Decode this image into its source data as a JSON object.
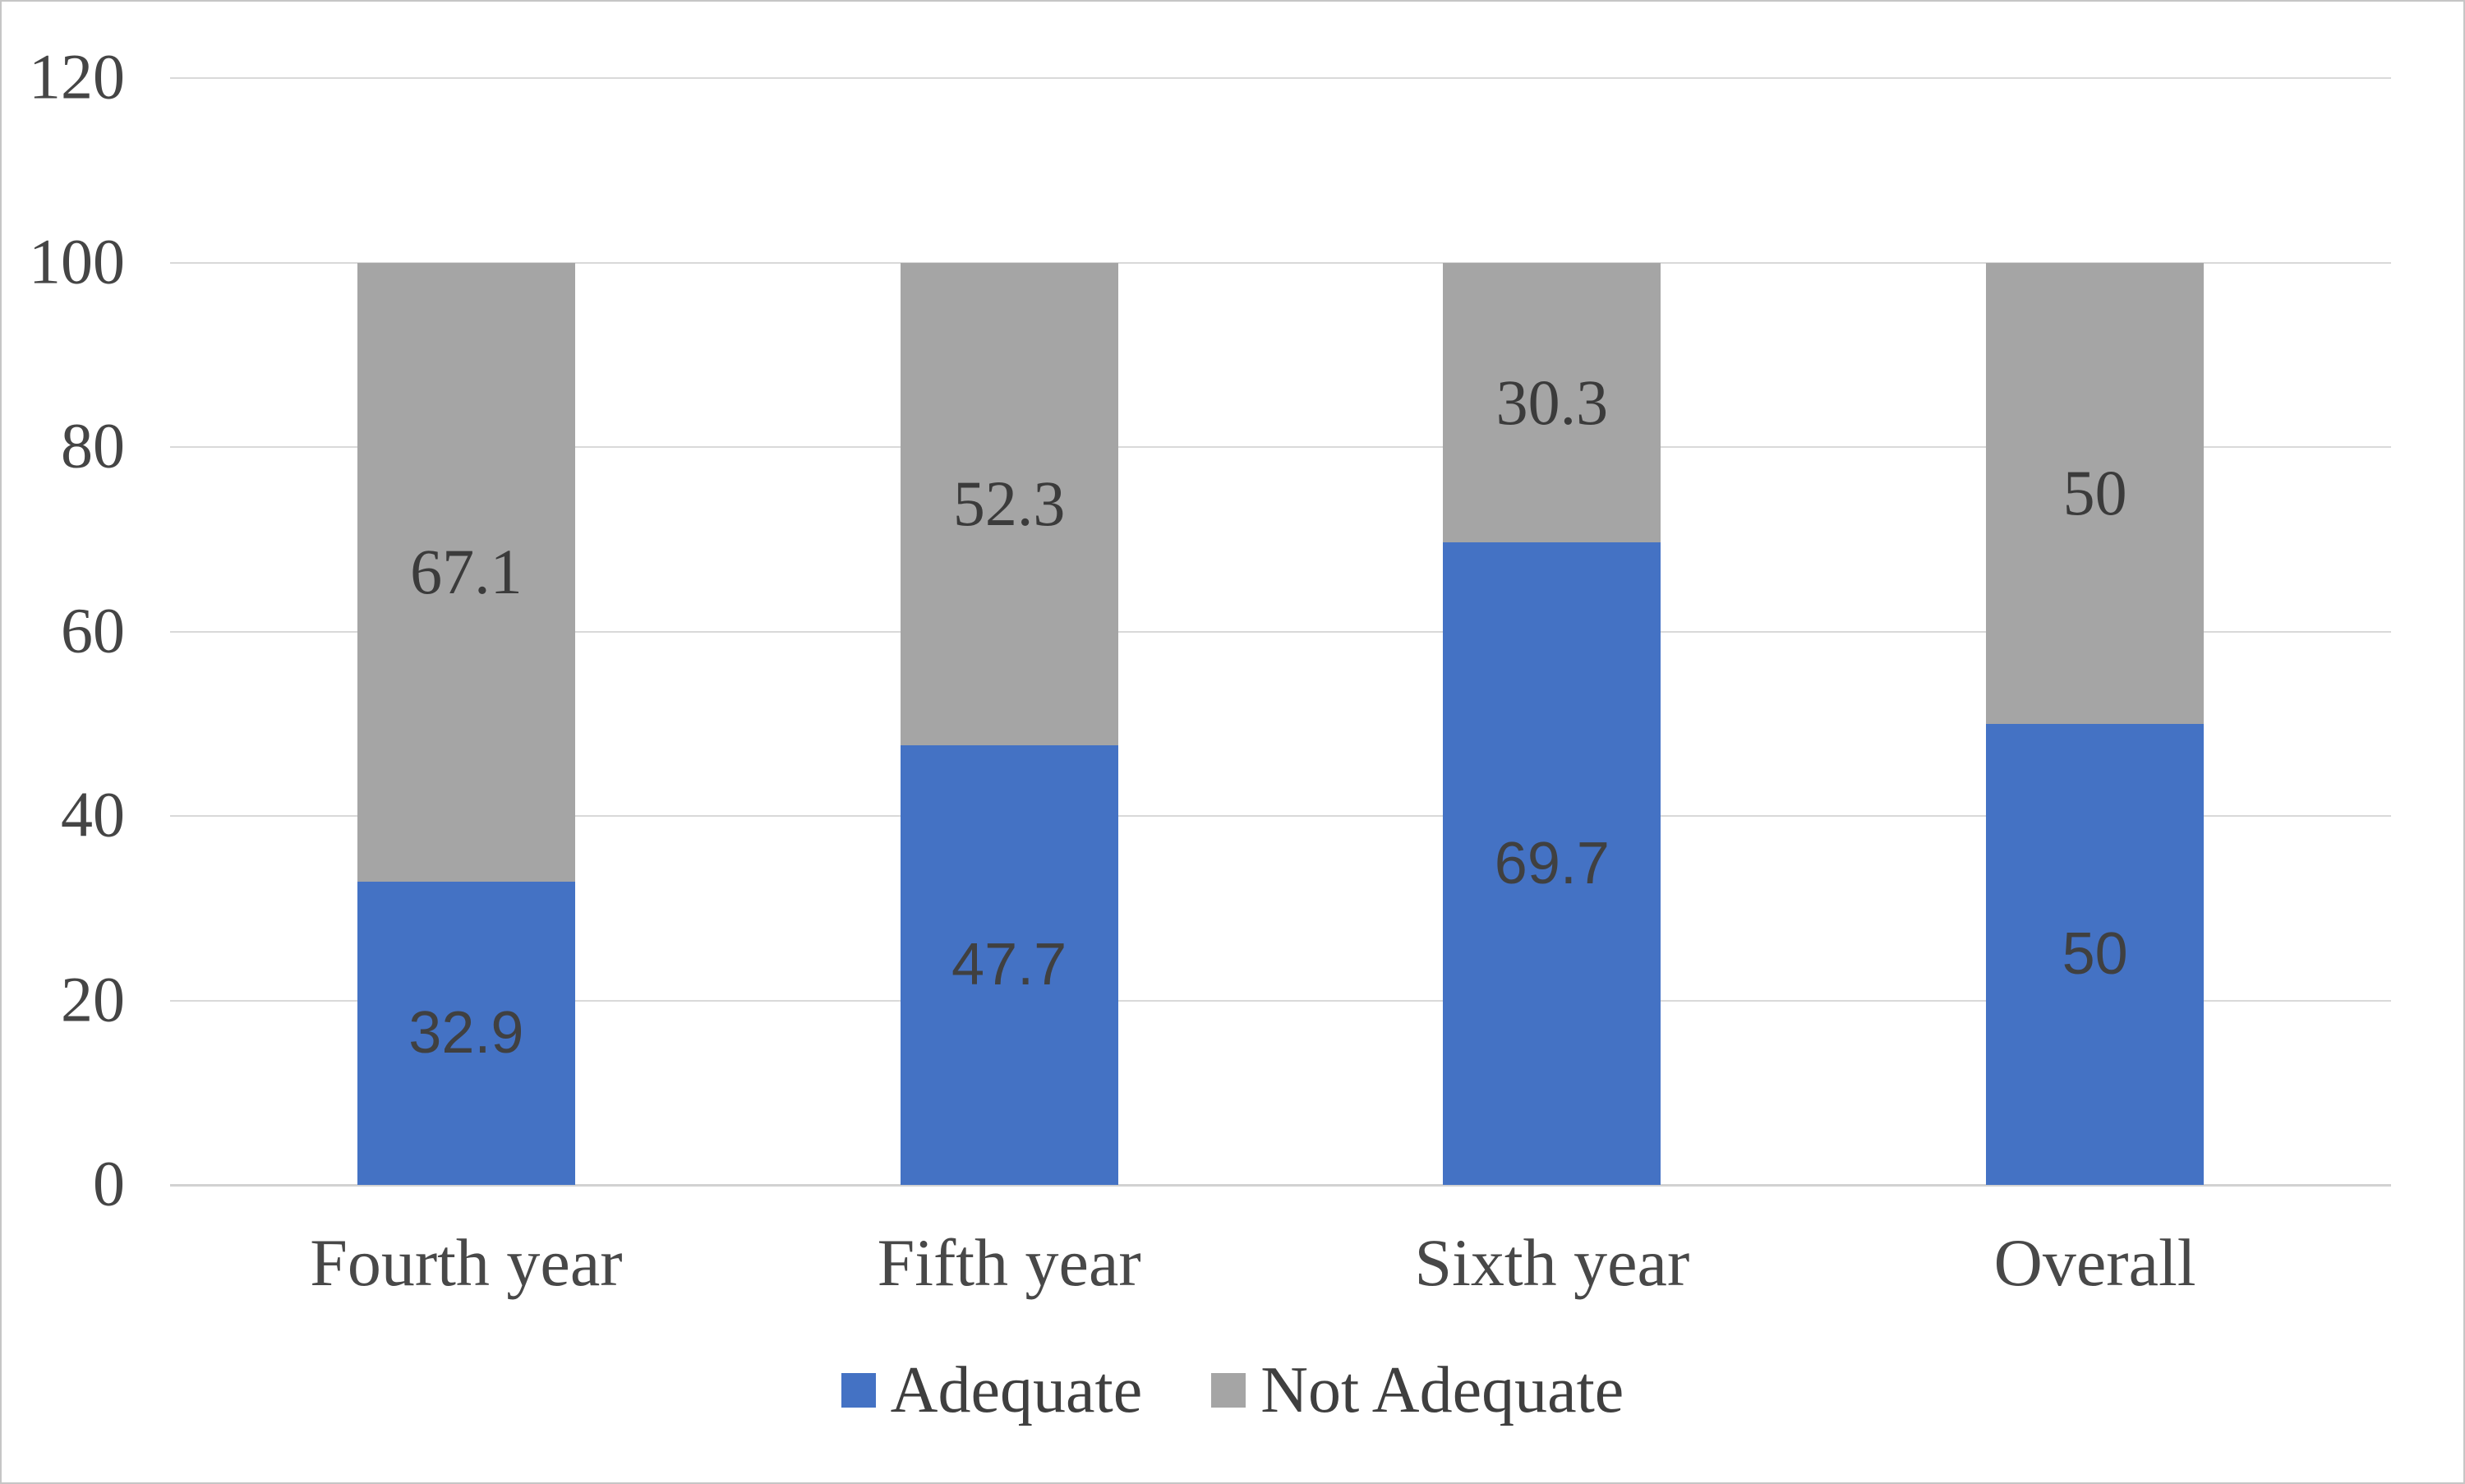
{
  "chart_data": {
    "type": "bar",
    "stacked": true,
    "title": "",
    "xlabel": "",
    "ylabel": "",
    "categories": [
      "Fourth year",
      "Fifth year",
      "Sixth year",
      "Overall"
    ],
    "series": [
      {
        "name": "Adequate",
        "color": "#4472C4",
        "values": [
          32.9,
          47.7,
          69.7,
          50
        ],
        "labels": [
          "32.9",
          "47.7",
          "69.7",
          "50"
        ]
      },
      {
        "name": "Not Adequate",
        "color": "#A5A5A5",
        "values": [
          67.1,
          52.3,
          30.3,
          50
        ],
        "labels": [
          "67.1",
          "52.3",
          "30.3",
          "50"
        ]
      }
    ],
    "ylim": [
      0,
      120
    ],
    "yticks": [
      "0",
      "20",
      "40",
      "60",
      "80",
      "100",
      "120"
    ],
    "grid": true,
    "legend_position": "bottom"
  },
  "colors": {
    "adequate": "#4472C4",
    "not_adequate": "#A5A5A5",
    "gridline": "#D9D9D9",
    "axis_text": "#454545",
    "data_label": "#404040"
  }
}
